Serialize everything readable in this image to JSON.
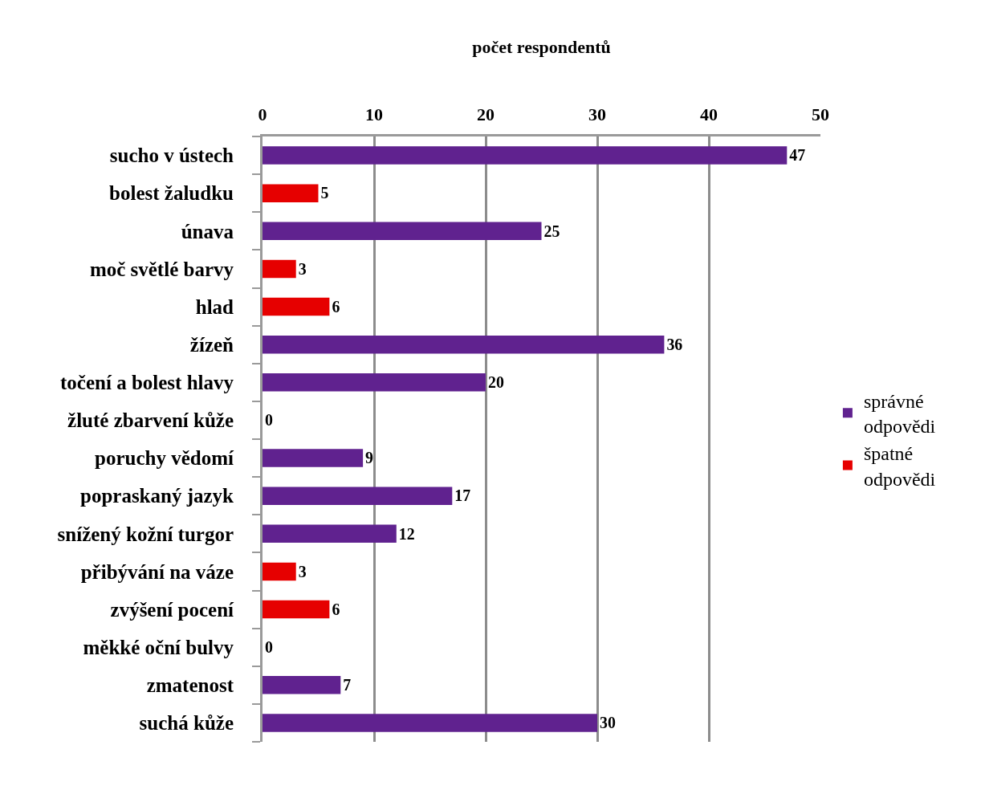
{
  "chart_data": {
    "type": "bar",
    "orientation": "horizontal",
    "xlabel": "počet respondentů",
    "categories": [
      "sucho v ústech",
      "bolest žaludku",
      "únava",
      "moč světlé barvy",
      "hlad",
      "žízeň",
      "točení a bolest hlavy",
      "žluté zbarvení kůže",
      "poruchy vědomí",
      "popraskaný jazyk",
      "snížený kožní turgor",
      "přibývání na váze",
      "zvýšení pocení",
      "měkké oční bulvy",
      "zmatenost",
      "suchá kůže"
    ],
    "series": [
      {
        "name": "správné odpovědi",
        "color": "#60228f",
        "values": [
          47,
          null,
          25,
          null,
          null,
          36,
          20,
          null,
          9,
          17,
          12,
          null,
          null,
          0,
          7,
          30
        ]
      },
      {
        "name": "špatné odpovědi",
        "color": "#e60000",
        "values": [
          null,
          5,
          null,
          3,
          6,
          null,
          null,
          0,
          null,
          null,
          null,
          3,
          6,
          null,
          null,
          null
        ]
      }
    ],
    "xlim": [
      0,
      50
    ],
    "xticks": [
      0,
      10,
      20,
      30,
      40,
      50
    ],
    "grid": "x",
    "legend": "right",
    "data_labels": true
  }
}
